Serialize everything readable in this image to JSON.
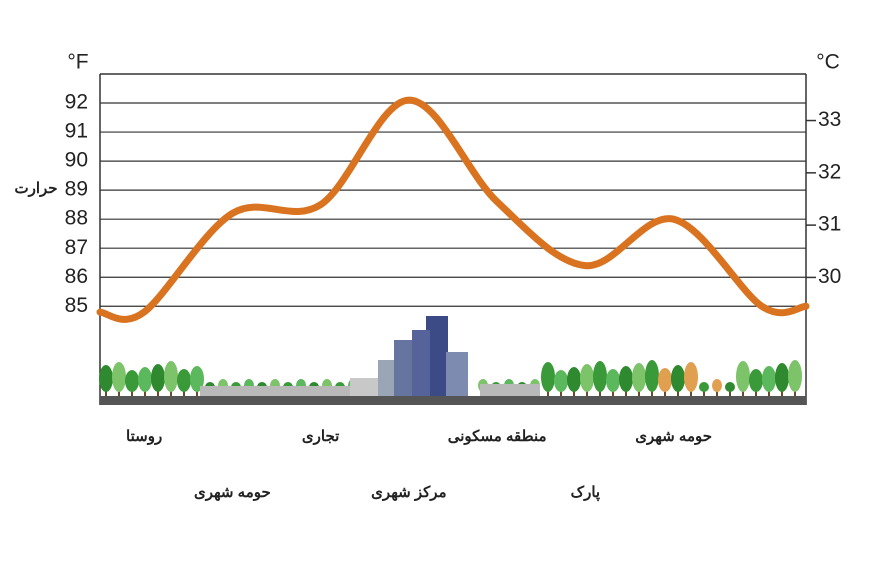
{
  "chart_data": {
    "type": "line",
    "y_label": "حرارت",
    "y_unit": "°F",
    "y2_unit": "°C",
    "categories": [
      "روستا",
      "حومه شهری",
      "تجاری",
      "مرکز شهری",
      "منطقه مسکونی",
      "پارک",
      "حومه شهری",
      null
    ],
    "values": [
      84.8,
      88.2,
      88.5,
      92.1,
      88.6,
      86.4,
      88.0,
      85.0
    ],
    "color": "#d9731f",
    "ylim": [
      81.6,
      93
    ],
    "yticks": [
      85,
      86,
      87,
      88,
      89,
      90,
      91,
      92
    ],
    "y2lim": [
      27.56,
      33.89
    ],
    "y2ticks": [
      30,
      31,
      32,
      33
    ],
    "grid": true
  }
}
